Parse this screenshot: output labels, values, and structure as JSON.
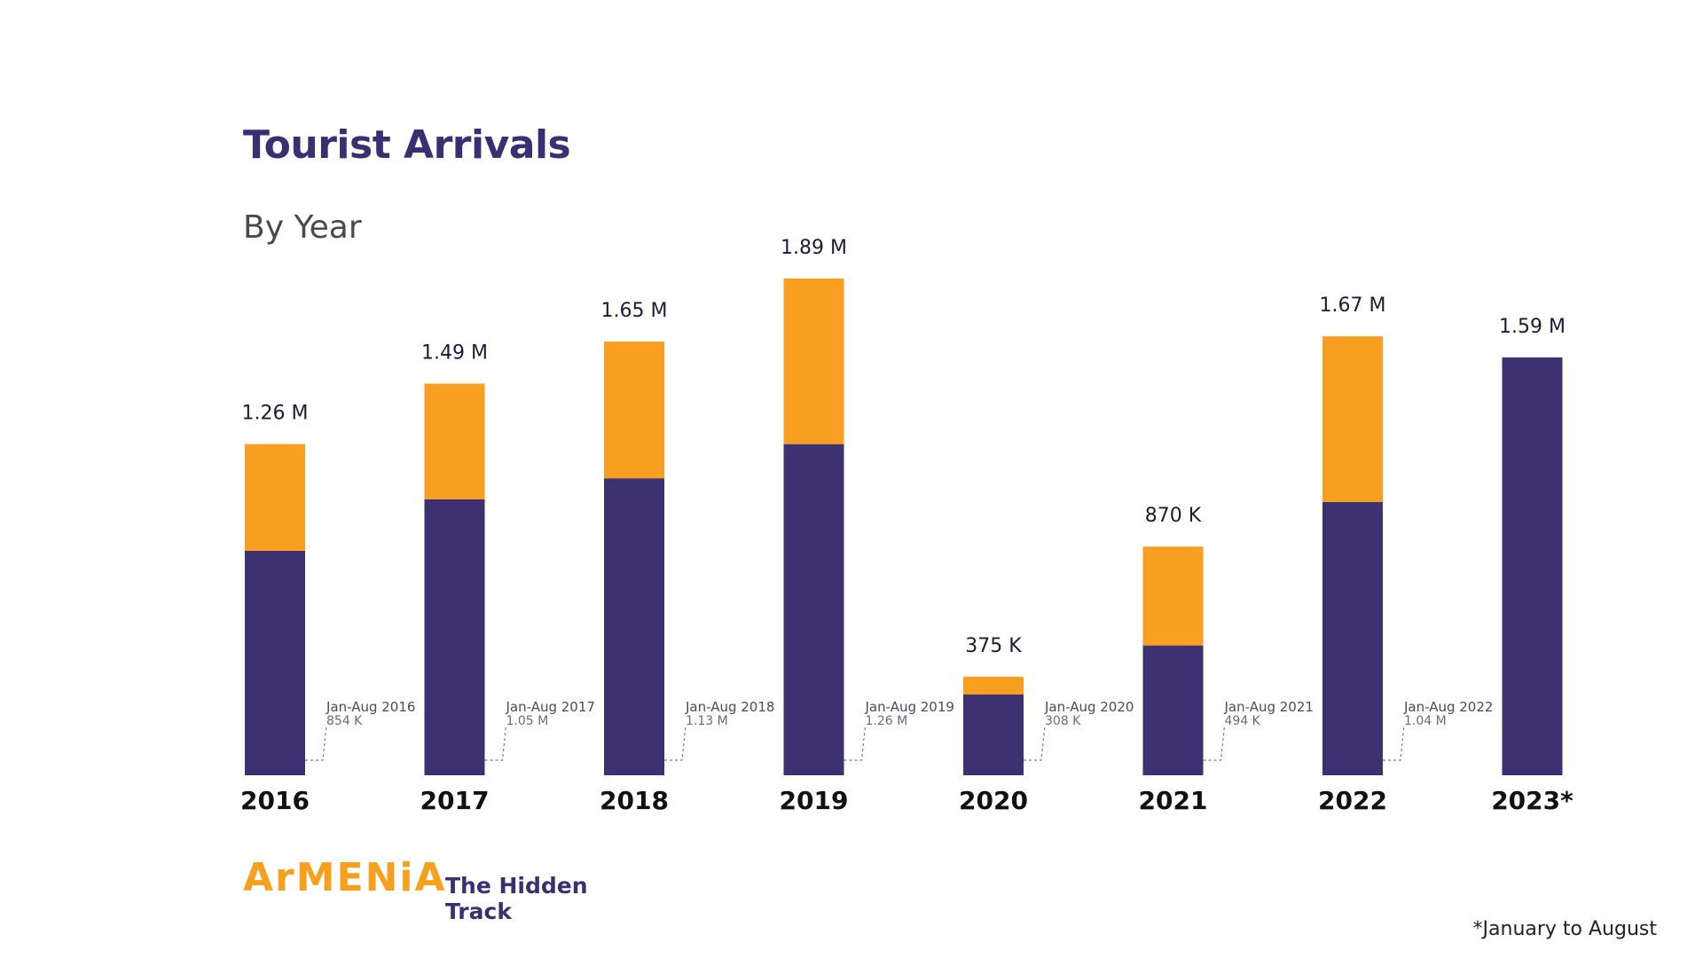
{
  "chart_data": {
    "type": "bar",
    "title": "Tourist Arrivals",
    "subtitle": "By Year",
    "categories": [
      "2016",
      "2017",
      "2018",
      "2019",
      "2020",
      "2021",
      "2022",
      "2023*"
    ],
    "totals": [
      1260000,
      1490000,
      1650000,
      1890000,
      375000,
      870000,
      1670000,
      1590000
    ],
    "total_labels": [
      "1.26 M",
      "1.49 M",
      "1.65 M",
      "1.89 M",
      "375 K",
      "870 K",
      "1.67 M",
      "1.59 M"
    ],
    "series": [
      {
        "name": "Jan-Aug",
        "color": "#3d3172",
        "values": [
          854000,
          1050000,
          1130000,
          1260000,
          308000,
          494000,
          1040000,
          1590000
        ]
      },
      {
        "color": "#f89e20",
        "values": [
          406000,
          440000,
          520000,
          630000,
          67000,
          376000,
          630000,
          0
        ]
      }
    ],
    "partial_annotations": [
      {
        "period": "Jan-Aug 2016",
        "value": "854 K"
      },
      {
        "period": "Jan-Aug 2017",
        "value": "1.05 M"
      },
      {
        "period": "Jan-Aug 2018",
        "value": "1.13 M"
      },
      {
        "period": "Jan-Aug 2019",
        "value": "1.26 M"
      },
      {
        "period": "Jan-Aug 2020",
        "value": "308 K"
      },
      {
        "period": "Jan-Aug 2021",
        "value": "494 K"
      },
      {
        "period": "Jan-Aug 2022",
        "value": "1.04 M"
      }
    ],
    "ylim": [
      0,
      1890000
    ],
    "grid": false,
    "footnote": "*January to August"
  },
  "brand": {
    "wordmark": "ArMENiA",
    "tagline": "The Hidden Track",
    "colors": {
      "wordmark": "#f7a01e",
      "tagline": "#3b2f73"
    }
  }
}
